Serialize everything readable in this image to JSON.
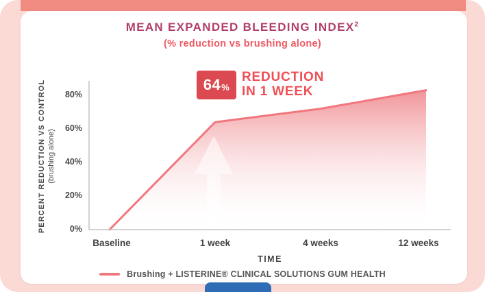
{
  "colors": {
    "background": "#fbd9d4",
    "top_strip": "#ef8b81",
    "card": "#ffffff",
    "title": "#b03e6b",
    "subtitle": "#ee5a64",
    "line": "#f1767d",
    "area_top": "#f08c91",
    "badge_bg": "#dc4a51",
    "badge_text": "#ee4f56",
    "axis": "#c4c4c4",
    "text": "#4a4a4a",
    "bottle_cap": "#2e6cb5"
  },
  "header": {
    "title": "MEAN EXPANDED BLEEDING INDEX",
    "title_superscript": "2",
    "subtitle": "(% reduction vs brushing alone)"
  },
  "badge": {
    "value": "64",
    "percent_sign": "%",
    "caption_line1": "REDUCTION",
    "caption_line2": "IN 1 WEEK"
  },
  "chart_data": {
    "type": "area",
    "title": "MEAN EXPANDED BLEEDING INDEX (% reduction vs brushing alone)",
    "categories": [
      "Baseline",
      "1 week",
      "4 weeks",
      "12 weeks"
    ],
    "values": [
      0,
      64,
      72,
      83
    ],
    "series_name": "Brushing + LISTERINE® CLINICAL SOLUTIONS GUM HEALTH",
    "ytick_labels": [
      "80%",
      "60%",
      "40%",
      "20%",
      "0%"
    ],
    "ytick_values": [
      80,
      60,
      40,
      20,
      0
    ],
    "ylim": [
      0,
      88
    ],
    "xlabel": "TIME",
    "ylabel": "PERCENT REDUCTION VS CONTROL",
    "ylabel_sub": "(brushing alone)",
    "grid": false,
    "legend_position": "bottom",
    "annotation": "64% REDUCTION IN 1 WEEK"
  },
  "legend": {
    "label": "Brushing + LISTERINE® CLINICAL SOLUTIONS GUM HEALTH"
  }
}
